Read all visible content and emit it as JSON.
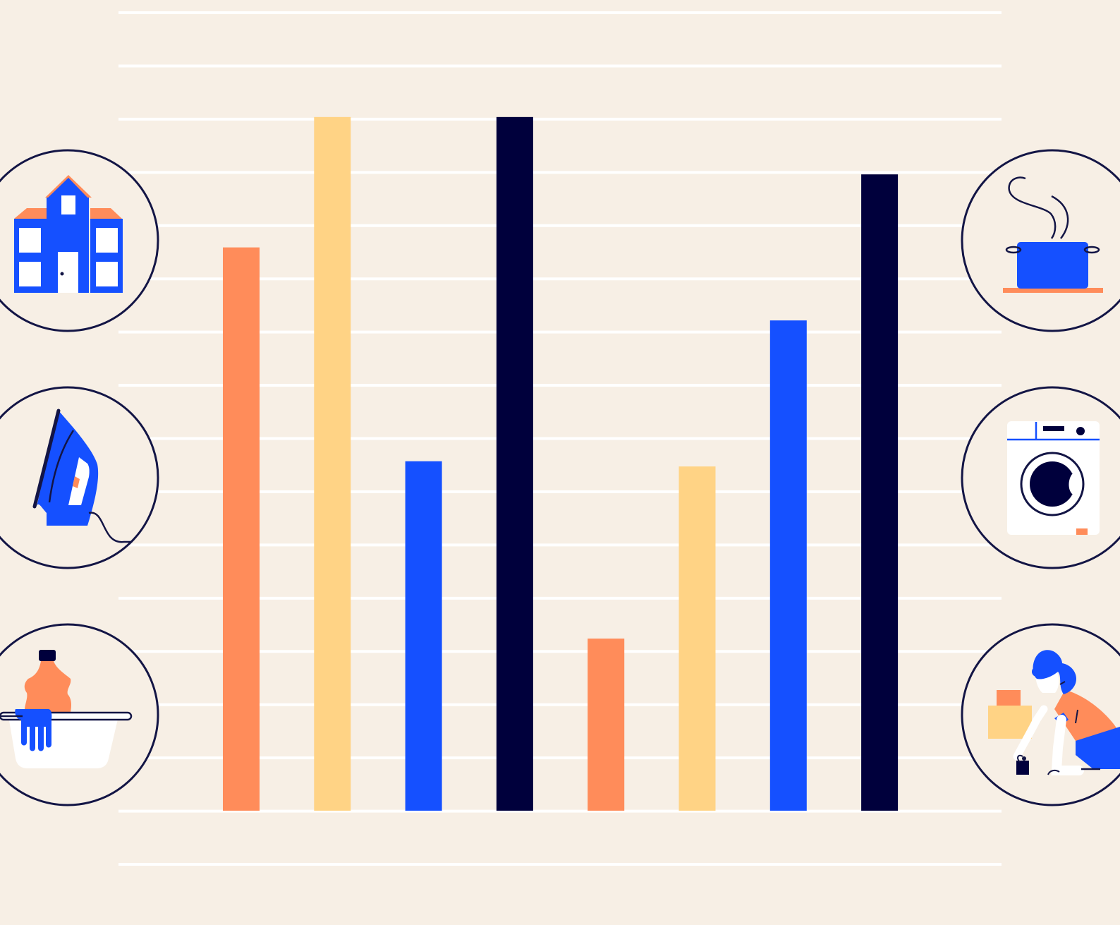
{
  "colors": {
    "background": "#F7EFE5",
    "grid": "#FFFFFF",
    "orange": "#FF8C5A",
    "yellow": "#FFD385",
    "blue": "#1550FF",
    "navy": "#00003C",
    "outline": "#131545",
    "white": "#FFFFFF"
  },
  "chart_data": {
    "type": "bar",
    "categories": [
      "",
      "",
      "",
      "",
      "",
      "",
      "",
      ""
    ],
    "values": [
      10.8,
      13.3,
      6.7,
      13.3,
      3.3,
      6.6,
      9.4,
      12.2
    ],
    "bar_colors": [
      "#FF8C5A",
      "#FFD385",
      "#1550FF",
      "#00003C",
      "#FF8C5A",
      "#FFD385",
      "#1550FF",
      "#00003C"
    ],
    "ylim": [
      0,
      15.3
    ],
    "grid": true,
    "gridline_count": 17,
    "axes_visible": false
  },
  "icons": {
    "left": [
      "house-icon",
      "clothes-iron-icon",
      "hand-washing-basin-icon"
    ],
    "right": [
      "steaming-pot-icon",
      "washing-machine-icon",
      "person-packing-boxes-icon"
    ]
  }
}
